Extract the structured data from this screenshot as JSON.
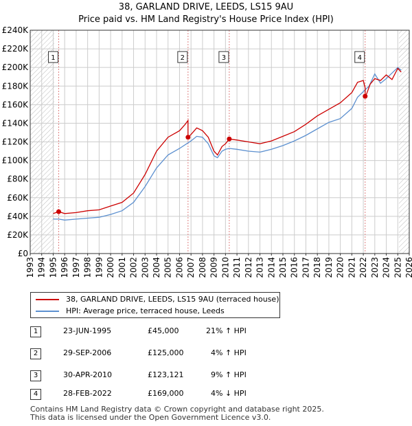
{
  "title": "38, GARLAND DRIVE, LEEDS, LS15 9AU",
  "subtitle": "Price paid vs. HM Land Registry's House Price Index (HPI)",
  "colors": {
    "property": "#cc0000",
    "hpi": "#5b8fcf",
    "shade": "#e6e6e6",
    "grid": "#cccccc",
    "hatch": "#bbbbbb"
  },
  "chart_data": {
    "type": "line",
    "title": "38, GARLAND DRIVE, LEEDS, LS15 9AU",
    "subtitle": "Price paid vs. HM Land Registry's House Price Index (HPI)",
    "x_label": "",
    "y_label": "",
    "xlim": [
      1993,
      2026
    ],
    "ylim": [
      0,
      240000
    ],
    "x_ticks": [
      "1993",
      "1994",
      "1995",
      "1996",
      "1997",
      "1998",
      "1999",
      "2000",
      "2001",
      "2002",
      "2003",
      "2004",
      "2005",
      "2006",
      "2007",
      "2008",
      "2009",
      "2010",
      "2011",
      "2012",
      "2013",
      "2014",
      "2015",
      "2016",
      "2017",
      "2018",
      "2019",
      "2020",
      "2021",
      "2022",
      "2023",
      "2024",
      "2025",
      "2026"
    ],
    "y_ticks": [
      {
        "value": 0,
        "label": "£0"
      },
      {
        "value": 20000,
        "label": "£20K"
      },
      {
        "value": 40000,
        "label": "£40K"
      },
      {
        "value": 60000,
        "label": "£60K"
      },
      {
        "value": 80000,
        "label": "£80K"
      },
      {
        "value": 100000,
        "label": "£100K"
      },
      {
        "value": 120000,
        "label": "£120K"
      },
      {
        "value": 140000,
        "label": "£140K"
      },
      {
        "value": 160000,
        "label": "£160K"
      },
      {
        "value": 180000,
        "label": "£180K"
      },
      {
        "value": 200000,
        "label": "£200K"
      },
      {
        "value": 220000,
        "label": "£220K"
      },
      {
        "value": 240000,
        "label": "£240K"
      }
    ],
    "hatched_ranges": [
      [
        1993,
        1995.1
      ],
      [
        2025.1,
        2026
      ]
    ],
    "grid": true,
    "series": [
      {
        "name": "38, GARLAND DRIVE, LEEDS, LS15 9AU (terraced house)",
        "color": "#cc0000",
        "x": [
          1995.0,
          1995.48,
          1996.0,
          1997.0,
          1998.0,
          1999.0,
          2000.0,
          2001.0,
          2002.0,
          2003.0,
          2004.0,
          2005.0,
          2006.0,
          2006.5,
          2006.74,
          2006.74,
          2007.0,
          2007.5,
          2008.0,
          2008.5,
          2009.0,
          2009.3,
          2009.7,
          2010.0,
          2010.33,
          2010.33,
          2011.0,
          2012.0,
          2013.0,
          2014.0,
          2015.0,
          2016.0,
          2017.0,
          2018.0,
          2019.0,
          2020.0,
          2021.0,
          2021.5,
          2022.0,
          2022.16,
          2022.16,
          2022.3,
          2022.6,
          2023.0,
          2023.5,
          2024.0,
          2024.5,
          2025.0,
          2025.3
        ],
        "y": [
          43000,
          45000,
          43000,
          44000,
          46000,
          47000,
          51000,
          55000,
          65000,
          85000,
          110000,
          125000,
          132000,
          139000,
          143000,
          125000,
          128000,
          135000,
          132000,
          125000,
          110000,
          106000,
          115000,
          118000,
          123121,
          123121,
          122000,
          120000,
          118000,
          121000,
          126000,
          131000,
          139000,
          148000,
          155000,
          162000,
          173000,
          184000,
          186000,
          178000,
          169000,
          172000,
          182000,
          188000,
          186000,
          192000,
          187000,
          199000,
          195000
        ]
      },
      {
        "name": "HPI: Average price, terraced house, Leeds",
        "color": "#5b8fcf",
        "x": [
          1995.0,
          1995.5,
          1996.0,
          1997.0,
          1998.0,
          1999.0,
          2000.0,
          2001.0,
          2002.0,
          2003.0,
          2004.0,
          2005.0,
          2006.0,
          2006.74,
          2007.0,
          2007.5,
          2008.0,
          2008.5,
          2009.0,
          2009.3,
          2009.7,
          2010.0,
          2010.33,
          2011.0,
          2012.0,
          2013.0,
          2014.0,
          2015.0,
          2016.0,
          2017.0,
          2018.0,
          2019.0,
          2020.0,
          2021.0,
          2021.5,
          2022.0,
          2022.16,
          2022.5,
          2023.0,
          2023.5,
          2024.0,
          2024.5,
          2025.0,
          2025.3
        ],
        "y": [
          37000,
          37000,
          36000,
          37000,
          38000,
          39000,
          42000,
          46000,
          55000,
          72000,
          92000,
          106000,
          113000,
          119000,
          121000,
          126000,
          125000,
          118000,
          105000,
          103000,
          110000,
          112000,
          113000,
          112000,
          110000,
          109000,
          112000,
          116000,
          121000,
          127000,
          134000,
          141000,
          145000,
          156000,
          168000,
          174000,
          176000,
          180000,
          193000,
          183000,
          188000,
          194000,
          200000,
          197000
        ]
      }
    ],
    "sales": [
      {
        "id": "1",
        "x": 1995.48,
        "y": 45000
      },
      {
        "id": "2",
        "x": 2006.74,
        "y": 125000
      },
      {
        "id": "3",
        "x": 2010.33,
        "y": 123121
      },
      {
        "id": "4",
        "x": 2022.16,
        "y": 169000
      }
    ]
  },
  "legend": {
    "property": "38, GARLAND DRIVE, LEEDS, LS15 9AU (terraced house)",
    "hpi": "HPI: Average price, terraced house, Leeds"
  },
  "transactions": [
    {
      "num": "1",
      "date": "23-JUN-1995",
      "price": "£45,000",
      "hpi": "21% ↑ HPI"
    },
    {
      "num": "2",
      "date": "29-SEP-2006",
      "price": "£125,000",
      "hpi": "4% ↑ HPI"
    },
    {
      "num": "3",
      "date": "30-APR-2010",
      "price": "£123,121",
      "hpi": "9% ↑ HPI"
    },
    {
      "num": "4",
      "date": "28-FEB-2022",
      "price": "£169,000",
      "hpi": "4% ↓ HPI"
    }
  ],
  "footer": {
    "line1": "Contains HM Land Registry data © Crown copyright and database right 2025.",
    "line2": "This data is licensed under the Open Government Licence v3.0."
  }
}
